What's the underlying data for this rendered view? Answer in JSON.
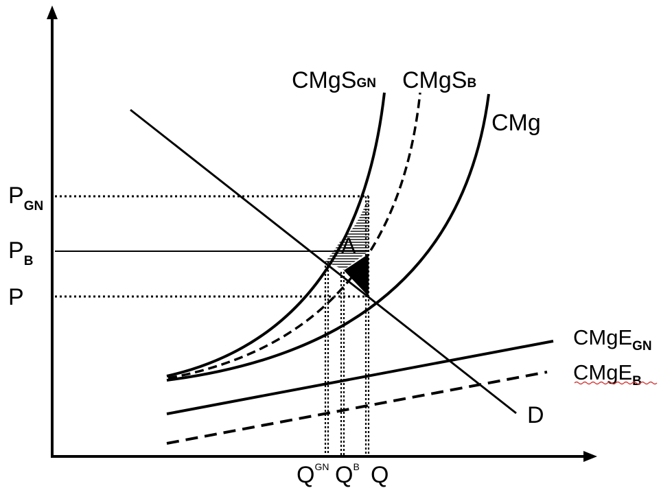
{
  "curves": {
    "cmgs_gn": {
      "main": "CMgS",
      "sub": "GN"
    },
    "cmgs_b": {
      "main": "CMgS",
      "sub": "B"
    },
    "cmg": {
      "main": "CMg"
    },
    "cmge_gn": {
      "main": "CMgE",
      "sub": "GN"
    },
    "cmge_b": {
      "main": "CMgE",
      "sub": "B"
    },
    "demand": {
      "main": "D"
    }
  },
  "y_axis_labels": {
    "p_gn": {
      "main": "P",
      "sub": "GN"
    },
    "p_b": {
      "main": "P",
      "sub": "B"
    },
    "p": {
      "main": "P"
    }
  },
  "x_axis_labels": {
    "q_gn": {
      "main": "Q",
      "sup": "GN"
    },
    "q_b": {
      "main": "Q",
      "sup": "B"
    },
    "q": {
      "main": "Q"
    }
  },
  "area_label": "A",
  "colors": {
    "ink": "#000000",
    "wavy_underline": "#d93a3a"
  }
}
